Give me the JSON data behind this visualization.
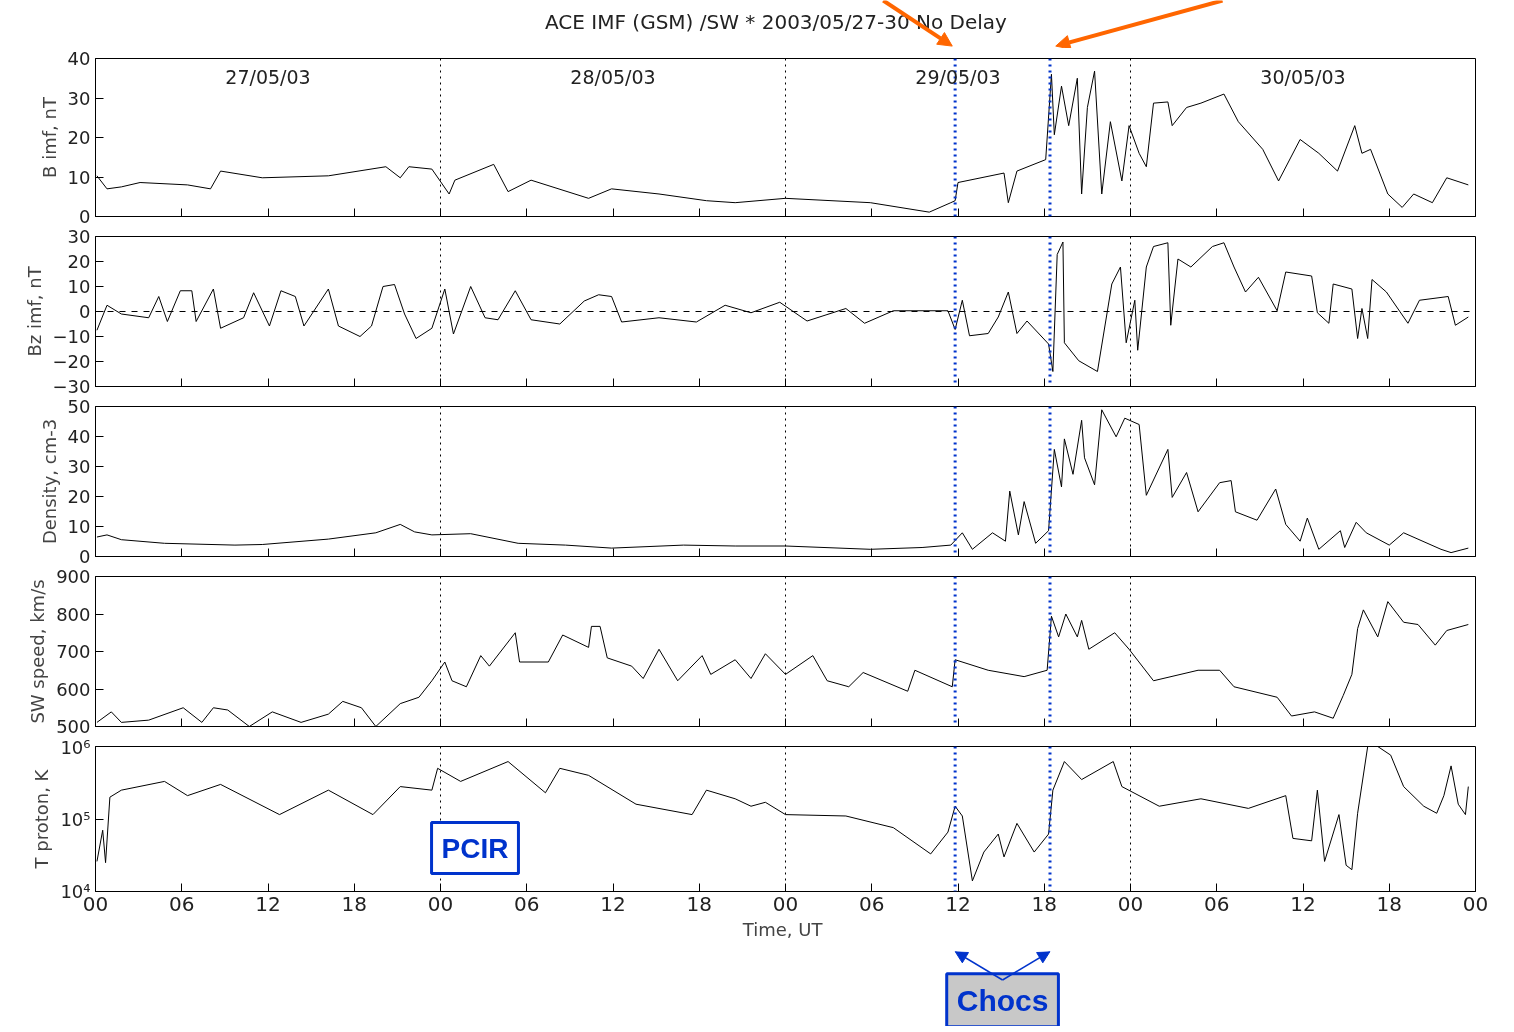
{
  "chart_data": [
    {
      "type": "line",
      "title": "ACE  IMF (GSM) /SW  * 2003/05/27-30  No Delay",
      "ylabel": "B imf, nT",
      "grid": false,
      "tick_labels": "y",
      "annotations": [
        "27/05/03",
        "28/05/03",
        "29/05/03",
        "30/05/03"
      ],
      "xlim": [
        0,
        96
      ],
      "xticks": [
        {
          "value": 0,
          "label": null
        },
        {
          "value": 6,
          "label": null
        },
        {
          "value": 12,
          "label": null
        },
        {
          "value": 18,
          "label": null
        },
        {
          "value": 24,
          "label": null
        },
        {
          "value": 30,
          "label": null
        },
        {
          "value": 36,
          "label": null
        },
        {
          "value": 42,
          "label": null
        },
        {
          "value": 48,
          "label": null
        },
        {
          "value": 54,
          "label": null
        },
        {
          "value": 60,
          "label": null
        },
        {
          "value": 66,
          "label": null
        },
        {
          "value": 72,
          "label": null
        },
        {
          "value": 78,
          "label": null
        },
        {
          "value": 84,
          "label": null
        },
        {
          "value": 90,
          "label": null
        },
        {
          "value": 96,
          "label": null
        }
      ],
      "ylim": [
        0,
        40
      ],
      "yticks": [
        0,
        10,
        20,
        30,
        40
      ],
      "ref_lines": [
        {
          "axis": "x",
          "value": 24,
          "line_style": "dotted",
          "color": "#000000"
        },
        {
          "axis": "x",
          "value": 48,
          "line_style": "dotted",
          "color": "#000000"
        },
        {
          "axis": "x",
          "value": 72,
          "line_style": "dotted",
          "color": "#000000"
        },
        {
          "axis": "x",
          "value": 59.8,
          "line_style": "dotted",
          "color": "#0033cc"
        },
        {
          "axis": "x",
          "value": 66.4,
          "line_style": "dotted",
          "color": "#0033cc"
        }
      ],
      "series": [
        {
          "color": "#000000",
          "x": [
            0.1,
            0.8,
            1.8,
            3.1,
            6.4,
            8,
            8.7,
            11.6,
            16.2,
            20.2,
            21.2,
            21.8,
            23.4,
            24.6,
            25,
            27.7,
            28.7,
            30.3,
            34.3,
            35.9,
            39.2,
            42.5,
            44.5,
            48,
            53.9,
            58,
            59.5,
            59.8,
            60,
            63.2,
            63.5,
            64.1,
            66.1,
            66.5,
            66.7,
            67.2,
            67.7,
            68.3,
            68.6,
            69,
            69.5,
            70,
            70.6,
            71.4,
            71.9,
            72.6,
            73.1,
            73.6,
            74.6,
            74.9,
            75.9,
            76.9,
            78.5,
            79.5,
            81.2,
            82.3,
            83.8,
            85.1,
            86.4,
            87.6,
            88.1,
            88.7,
            89.9,
            90.9,
            91.7,
            93,
            94,
            95.5
          ],
          "values": [
            10.3,
            7,
            7.5,
            8.6,
            8,
            7,
            11.5,
            9.8,
            10.3,
            12.6,
            9.8,
            12.6,
            12,
            5.7,
            9.2,
            13.2,
            6.3,
            9.2,
            4.6,
            7,
            5.7,
            4,
            3.5,
            4.6,
            3.5,
            1.1,
            3.5,
            4,
            8.6,
            11,
            3.5,
            11.5,
            14.4,
            36,
            20.7,
            33,
            23,
            35,
            5.7,
            27.6,
            36.8,
            5.7,
            24,
            9,
            23,
            16,
            12.6,
            28.7,
            29,
            23,
            27.6,
            28.7,
            31,
            24,
            17,
            9,
            19.5,
            16,
            11.5,
            23,
            16,
            17,
            5.7,
            2.3,
            5.7,
            3.5,
            9.8,
            8
          ]
        }
      ]
    },
    {
      "type": "line",
      "ylabel": "Bz imf, nT",
      "grid": false,
      "tick_labels": "y",
      "xlim": [
        0,
        96
      ],
      "xticks": [
        {
          "value": 0,
          "label": null
        },
        {
          "value": 6,
          "label": null
        },
        {
          "value": 12,
          "label": null
        },
        {
          "value": 18,
          "label": null
        },
        {
          "value": 24,
          "label": null
        },
        {
          "value": 30,
          "label": null
        },
        {
          "value": 36,
          "label": null
        },
        {
          "value": 42,
          "label": null
        },
        {
          "value": 48,
          "label": null
        },
        {
          "value": 54,
          "label": null
        },
        {
          "value": 60,
          "label": null
        },
        {
          "value": 66,
          "label": null
        },
        {
          "value": 72,
          "label": null
        },
        {
          "value": 78,
          "label": null
        },
        {
          "value": 84,
          "label": null
        },
        {
          "value": 90,
          "label": null
        },
        {
          "value": 96,
          "label": null
        }
      ],
      "ylim": [
        -30,
        30
      ],
      "yticks": [
        -30,
        -20,
        -10,
        0,
        10,
        20,
        30
      ],
      "ref_lines": [
        {
          "axis": "y",
          "value": 0,
          "line_style": "dashed",
          "color": "#000000"
        },
        {
          "axis": "x",
          "value": 24,
          "line_style": "dotted",
          "color": "#000000"
        },
        {
          "axis": "x",
          "value": 48,
          "line_style": "dotted",
          "color": "#000000"
        },
        {
          "axis": "x",
          "value": 72,
          "line_style": "dotted",
          "color": "#000000"
        },
        {
          "axis": "x",
          "value": 59.8,
          "line_style": "dotted",
          "color": "#0033cc"
        },
        {
          "axis": "x",
          "value": 66.4,
          "line_style": "dotted",
          "color": "#0033cc"
        }
      ],
      "series": [
        {
          "color": "#000000",
          "x": [
            0.1,
            0.8,
            1.8,
            3.7,
            4.4,
            5,
            5.9,
            6.7,
            7,
            8.2,
            8.7,
            10.3,
            11,
            12.1,
            12.9,
            13.9,
            14.5,
            16.2,
            16.9,
            18.4,
            19.2,
            20,
            20.8,
            21.5,
            22.3,
            23.4,
            24.3,
            24.9,
            26.1,
            27.1,
            28,
            29.2,
            30.3,
            32.3,
            34,
            35,
            35.9,
            36.6,
            39.2,
            41.8,
            43.8,
            45.6,
            47.6,
            49.5,
            52.2,
            53.5,
            55.5,
            59.3,
            59.8,
            60.3,
            60.8,
            62.1,
            62.8,
            63.5,
            64.1,
            64.8,
            66.3,
            66.6,
            66.9,
            67.3,
            67.4,
            68.4,
            69.7,
            70.7,
            71.3,
            71.7,
            72.3,
            72.5,
            73.1,
            73.6,
            74.6,
            74.8,
            75.3,
            76.2,
            77.7,
            78.5,
            79.2,
            80,
            80.9,
            82.2,
            82.8,
            84.6,
            85,
            85.8,
            86.1,
            87.4,
            87.8,
            88.1,
            88.5,
            88.8,
            89.8,
            91.3,
            92.1,
            94.1,
            94.6,
            95.5
          ],
          "values": [
            -7.5,
            2.5,
            -1,
            -2.5,
            6,
            -4,
            8.3,
            8.3,
            -4,
            9,
            -6.7,
            -2.5,
            7.5,
            -5.8,
            8.3,
            6,
            -5.8,
            9,
            -5.8,
            -10,
            -5.8,
            10,
            10.8,
            -1,
            -10.8,
            -6.7,
            9,
            -9,
            10,
            -2.5,
            -3.3,
            8.3,
            -3.3,
            -5,
            4.2,
            6.7,
            6,
            -4.2,
            -2.5,
            -4.2,
            2.5,
            -0.5,
            3.7,
            -3.8,
            1.2,
            -4.7,
            0.3,
            0.3,
            -7.2,
            4.5,
            -9.7,
            -8.8,
            -2.2,
            7.8,
            -8.8,
            -3.8,
            -13,
            -24,
            22.8,
            27.8,
            -12.5,
            -19.7,
            -24,
            11,
            17.8,
            -12.5,
            4.5,
            -15.5,
            17.8,
            26,
            27.5,
            -5.5,
            21,
            17.8,
            26,
            27.5,
            17.8,
            7.8,
            13.7,
            0.3,
            15.8,
            14.2,
            -0.5,
            -4.7,
            11,
            9,
            -10.8,
            1.2,
            -10.8,
            12.8,
            7.8,
            -4.7,
            4.5,
            6,
            -5.5,
            -2.2
          ]
        }
      ]
    },
    {
      "type": "line",
      "ylabel": "Density, cm-3",
      "grid": false,
      "tick_labels": "y",
      "xlim": [
        0,
        96
      ],
      "xticks": [
        {
          "value": 0,
          "label": null
        },
        {
          "value": 6,
          "label": null
        },
        {
          "value": 12,
          "label": null
        },
        {
          "value": 18,
          "label": null
        },
        {
          "value": 24,
          "label": null
        },
        {
          "value": 30,
          "label": null
        },
        {
          "value": 36,
          "label": null
        },
        {
          "value": 42,
          "label": null
        },
        {
          "value": 48,
          "label": null
        },
        {
          "value": 54,
          "label": null
        },
        {
          "value": 60,
          "label": null
        },
        {
          "value": 66,
          "label": null
        },
        {
          "value": 72,
          "label": null
        },
        {
          "value": 78,
          "label": null
        },
        {
          "value": 84,
          "label": null
        },
        {
          "value": 90,
          "label": null
        },
        {
          "value": 96,
          "label": null
        }
      ],
      "ylim": [
        0,
        50
      ],
      "yticks": [
        0,
        10,
        20,
        30,
        40,
        50
      ],
      "ref_lines": [
        {
          "axis": "x",
          "value": 24,
          "line_style": "dotted",
          "color": "#000000"
        },
        {
          "axis": "x",
          "value": 48,
          "line_style": "dotted",
          "color": "#000000"
        },
        {
          "axis": "x",
          "value": 72,
          "line_style": "dotted",
          "color": "#000000"
        },
        {
          "axis": "x",
          "value": 59.8,
          "line_style": "dotted",
          "color": "#0033cc"
        },
        {
          "axis": "x",
          "value": 66.4,
          "line_style": "dotted",
          "color": "#0033cc"
        }
      ],
      "series": [
        {
          "color": "#000000",
          "x": [
            0.1,
            0.8,
            1.8,
            4.8,
            9.7,
            11.6,
            16.2,
            19.5,
            21.2,
            22.2,
            23.4,
            26.1,
            29.4,
            32.7,
            35.9,
            40.9,
            44.5,
            48,
            53.9,
            57.5,
            59.5,
            60.3,
            61,
            62.4,
            63.3,
            63.6,
            64.2,
            64.6,
            65.4,
            66.3,
            66.7,
            67.2,
            67.4,
            68,
            68.6,
            68.8,
            69.5,
            70,
            71,
            71.6,
            72.6,
            73.1,
            74.6,
            74.9,
            75.9,
            76.7,
            78.2,
            79,
            79.3,
            80.8,
            82.1,
            82.8,
            83.8,
            84.3,
            85.1,
            86.6,
            86.9,
            87.7,
            88.4,
            90,
            91,
            93.6,
            94.3,
            95.5
          ],
          "values": [
            6.5,
            7.2,
            5.6,
            4.4,
            3.8,
            4,
            5.8,
            7.9,
            10.7,
            8.2,
            7.2,
            7.6,
            4.4,
            3.8,
            2.8,
            3.8,
            3.5,
            3.5,
            2.4,
            3,
            3.8,
            7.9,
            2.4,
            7.9,
            5.1,
            21.8,
            7.2,
            18.3,
            4.4,
            8.6,
            35.7,
            23.2,
            39.2,
            27.4,
            45.4,
            32.9,
            23.9,
            48.9,
            39.9,
            46.1,
            44,
            20.4,
            35.7,
            19.7,
            28,
            14.9,
            24.6,
            25.3,
            14.9,
            12.1,
            22.5,
            10.7,
            5.1,
            12.8,
            2.4,
            8.6,
            3,
            11.4,
            7.9,
            3.8,
            7.9,
            2.4,
            1.3,
            2.8
          ]
        }
      ]
    },
    {
      "type": "line",
      "ylabel": "SW speed, km/s",
      "grid": false,
      "tick_labels": "y",
      "xlim": [
        0,
        96
      ],
      "xticks": [
        {
          "value": 0,
          "label": null
        },
        {
          "value": 6,
          "label": null
        },
        {
          "value": 12,
          "label": null
        },
        {
          "value": 18,
          "label": null
        },
        {
          "value": 24,
          "label": null
        },
        {
          "value": 30,
          "label": null
        },
        {
          "value": 36,
          "label": null
        },
        {
          "value": 42,
          "label": null
        },
        {
          "value": 48,
          "label": null
        },
        {
          "value": 54,
          "label": null
        },
        {
          "value": 60,
          "label": null
        },
        {
          "value": 66,
          "label": null
        },
        {
          "value": 72,
          "label": null
        },
        {
          "value": 78,
          "label": null
        },
        {
          "value": 84,
          "label": null
        },
        {
          "value": 90,
          "label": null
        },
        {
          "value": 96,
          "label": null
        }
      ],
      "ylim": [
        500,
        900
      ],
      "yticks": [
        500,
        600,
        700,
        800,
        900
      ],
      "ref_lines": [
        {
          "axis": "x",
          "value": 24,
          "line_style": "dotted",
          "color": "#000000"
        },
        {
          "axis": "x",
          "value": 48,
          "line_style": "dotted",
          "color": "#000000"
        },
        {
          "axis": "x",
          "value": 72,
          "line_style": "dotted",
          "color": "#000000"
        },
        {
          "axis": "x",
          "value": 59.8,
          "line_style": "dotted",
          "color": "#0033cc"
        },
        {
          "axis": "x",
          "value": 66.4,
          "line_style": "dotted",
          "color": "#0033cc"
        }
      ],
      "series": [
        {
          "color": "#000000",
          "x": [
            0.1,
            1.1,
            1.8,
            3.7,
            6.1,
            7.4,
            8.2,
            9.2,
            10.7,
            12.3,
            14.3,
            16.2,
            17.2,
            18.5,
            19.5,
            21.2,
            22.5,
            23.4,
            24.3,
            24.8,
            25.8,
            26.8,
            27.4,
            29.2,
            29.5,
            31.5,
            32.5,
            34.3,
            34.5,
            35.1,
            35.6,
            37.3,
            38.1,
            39.2,
            40.5,
            42.2,
            42.8,
            44.5,
            45.6,
            46.6,
            48,
            49.9,
            50.9,
            52.4,
            53.4,
            56.5,
            57,
            59.6,
            59.8,
            62.1,
            64.6,
            66.2,
            66.5,
            67,
            67.5,
            68.3,
            68.6,
            69.1,
            70.9,
            71.9,
            73.6,
            76.7,
            78.2,
            79.2,
            82.2,
            83.2,
            84.8,
            86.1,
            86.8,
            87.4,
            87.8,
            88.2,
            89.2,
            89.9,
            91,
            92,
            93.2,
            94,
            95.5
          ],
          "values": [
            511,
            539,
            511,
            517,
            550,
            511,
            550,
            544,
            500,
            539,
            511,
            533,
            567,
            550,
            500,
            561,
            578,
            622,
            672,
            622,
            606,
            689,
            661,
            750,
            672,
            672,
            744,
            711,
            767,
            767,
            683,
            661,
            628,
            706,
            622,
            689,
            639,
            678,
            628,
            694,
            639,
            689,
            622,
            606,
            644,
            594,
            650,
            606,
            678,
            650,
            633,
            650,
            794,
            739,
            800,
            739,
            783,
            706,
            750,
            706,
            622,
            650,
            650,
            606,
            578,
            528,
            539,
            522,
            583,
            639,
            761,
            811,
            739,
            833,
            778,
            772,
            717,
            756,
            772
          ]
        }
      ]
    },
    {
      "type": "line",
      "ylabel": "T proton, K",
      "xlabel": "Time,  UT",
      "grid": false,
      "log": true,
      "annotations": [
        "PCIR",
        "Chocs"
      ],
      "xlim": [
        0,
        96
      ],
      "xticks": [
        {
          "value": 0,
          "label": "00"
        },
        {
          "value": 6,
          "label": "06"
        },
        {
          "value": 12,
          "label": "12"
        },
        {
          "value": 18,
          "label": "18"
        },
        {
          "value": 24,
          "label": "00"
        },
        {
          "value": 30,
          "label": "06"
        },
        {
          "value": 36,
          "label": "12"
        },
        {
          "value": 42,
          "label": "18"
        },
        {
          "value": 48,
          "label": "00"
        },
        {
          "value": 54,
          "label": "06"
        },
        {
          "value": 60,
          "label": "12"
        },
        {
          "value": 66,
          "label": "18"
        },
        {
          "value": 72,
          "label": "00"
        },
        {
          "value": 78,
          "label": "06"
        },
        {
          "value": 84,
          "label": "12"
        },
        {
          "value": 90,
          "label": "18"
        },
        {
          "value": 96,
          "label": "00"
        }
      ],
      "ylim": [
        10000,
        1000000
      ],
      "yticks": [
        {
          "value": 10000,
          "label": "10⁴"
        },
        {
          "value": 100000,
          "label": "10⁵"
        },
        {
          "value": 1000000,
          "label": "10⁶"
        }
      ],
      "ref_lines": [
        {
          "axis": "x",
          "value": 24,
          "line_style": "dotted",
          "color": "#000000"
        },
        {
          "axis": "x",
          "value": 48,
          "line_style": "dotted",
          "color": "#000000"
        },
        {
          "axis": "x",
          "value": 72,
          "line_style": "dotted",
          "color": "#000000"
        },
        {
          "axis": "x",
          "value": 59.8,
          "line_style": "dotted",
          "color": "#0033cc"
        },
        {
          "axis": "x",
          "value": 66.4,
          "line_style": "dotted",
          "color": "#0033cc"
        }
      ],
      "series": [
        {
          "color": "#000000",
          "x": [
            0.1,
            0.5,
            0.7,
            1,
            1.8,
            4.8,
            6.4,
            8.7,
            12.8,
            16.2,
            19.3,
            21.2,
            23.4,
            23.8,
            25.4,
            28.7,
            31.3,
            32.3,
            34.3,
            37.6,
            41.5,
            42.5,
            44.5,
            45.6,
            46.6,
            48,
            52.2,
            55.5,
            58.1,
            59.3,
            59.8,
            60.3,
            61,
            61.8,
            62.8,
            63.2,
            64.1,
            65.3,
            66.3,
            66.6,
            67.4,
            68.6,
            70.8,
            71.4,
            74,
            76.9,
            80.2,
            82.8,
            83.3,
            84.6,
            85,
            85.5,
            86.5,
            87,
            87.4,
            87.8,
            88.5,
            89.2,
            90.1,
            91,
            92.4,
            93.3,
            93.8,
            94.3,
            94.8,
            95.3,
            95.5
          ],
          "values": [
            26000,
            70000,
            25000,
            200000,
            250000,
            330000,
            210000,
            300000,
            115000,
            250000,
            115000,
            280000,
            250000,
            500000,
            330000,
            620000,
            230000,
            500000,
            400000,
            160000,
            115000,
            250000,
            190000,
            150000,
            170000,
            115000,
            110000,
            76000,
            33000,
            66000,
            150000,
            110000,
            14000,
            35000,
            62000,
            30000,
            87000,
            35000,
            62000,
            250000,
            620000,
            350000,
            620000,
            280000,
            150000,
            190000,
            140000,
            210000,
            54000,
            50000,
            250000,
            26000,
            115000,
            23000,
            20000,
            120000,
            1000000,
            1000000,
            760000,
            280000,
            150000,
            120000,
            210000,
            540000,
            160000,
            115000,
            280000
          ]
        }
      ]
    }
  ]
}
